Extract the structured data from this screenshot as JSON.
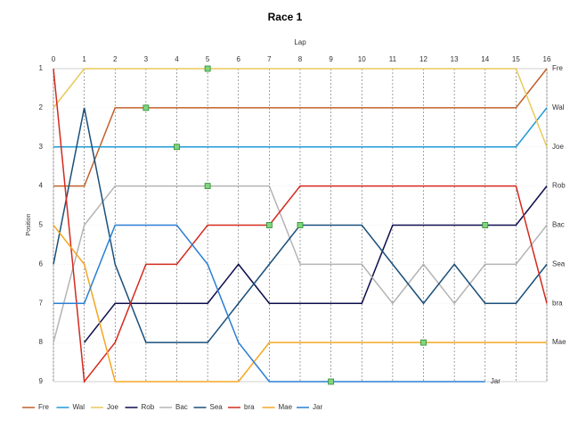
{
  "chart_data": {
    "type": "line",
    "title": "Race 1",
    "x_label": "Lap",
    "y_label": "Position",
    "x": [
      0,
      1,
      2,
      3,
      4,
      5,
      6,
      7,
      8,
      9,
      10,
      11,
      12,
      13,
      14,
      15,
      16
    ],
    "xlim": [
      0,
      16
    ],
    "xticks": [
      0,
      1,
      2,
      3,
      4,
      5,
      6,
      7,
      8,
      9,
      10,
      11,
      12,
      13,
      14,
      15,
      16
    ],
    "ylim": [
      9,
      1
    ],
    "yticks": [
      1,
      2,
      3,
      4,
      5,
      6,
      7,
      8,
      9
    ],
    "grid": true,
    "series": [
      {
        "name": "Fre",
        "color": "#c0602a",
        "values": [
          4,
          4,
          2,
          2,
          2,
          2,
          2,
          2,
          2,
          2,
          2,
          2,
          2,
          2,
          2,
          2,
          1
        ]
      },
      {
        "name": "Wal",
        "color": "#1e9ad6",
        "values": [
          3,
          3,
          3,
          3,
          3,
          3,
          3,
          3,
          3,
          3,
          3,
          3,
          3,
          3,
          3,
          3,
          2
        ]
      },
      {
        "name": "Joe",
        "color": "#e8c95a",
        "values": [
          2,
          1,
          1,
          1,
          1,
          1,
          1,
          1,
          1,
          1,
          1,
          1,
          1,
          1,
          1,
          1,
          3
        ]
      },
      {
        "name": "Rob",
        "color": "#0d0d4d",
        "values": [
          null,
          8,
          7,
          7,
          7,
          7,
          6,
          7,
          7,
          7,
          7,
          5,
          5,
          5,
          5,
          5,
          4
        ]
      },
      {
        "name": "Bac",
        "color": "#b4b4b4",
        "values": [
          8,
          5,
          4,
          4,
          4,
          4,
          4,
          4,
          6,
          6,
          6,
          7,
          6,
          7,
          6,
          6,
          5
        ]
      },
      {
        "name": "Sea",
        "color": "#1a4f7a",
        "values": [
          6,
          2,
          6,
          8,
          8,
          8,
          7,
          6,
          5,
          5,
          5,
          6,
          7,
          6,
          7,
          7,
          6
        ]
      },
      {
        "name": "bra",
        "color": "#d42a1e",
        "values": [
          1,
          9,
          8,
          6,
          6,
          5,
          5,
          5,
          4,
          4,
          4,
          4,
          4,
          4,
          4,
          4,
          7
        ]
      },
      {
        "name": "Mae",
        "color": "#f5a623",
        "values": [
          5,
          6,
          9,
          9,
          9,
          9,
          9,
          8,
          8,
          8,
          8,
          8,
          8,
          8,
          8,
          8,
          8
        ]
      },
      {
        "name": "Jar",
        "color": "#2a7fd4",
        "values": [
          7,
          7,
          5,
          5,
          5,
          6,
          8,
          9,
          9,
          9,
          9,
          9,
          9,
          9,
          9,
          null,
          null
        ]
      }
    ],
    "markers": {
      "x": [
        5,
        3,
        4,
        5,
        7,
        8,
        14,
        12,
        9
      ],
      "y": [
        1,
        2,
        3,
        4,
        5,
        5,
        5,
        8,
        9
      ]
    },
    "marker_color": "#7fd67f"
  }
}
